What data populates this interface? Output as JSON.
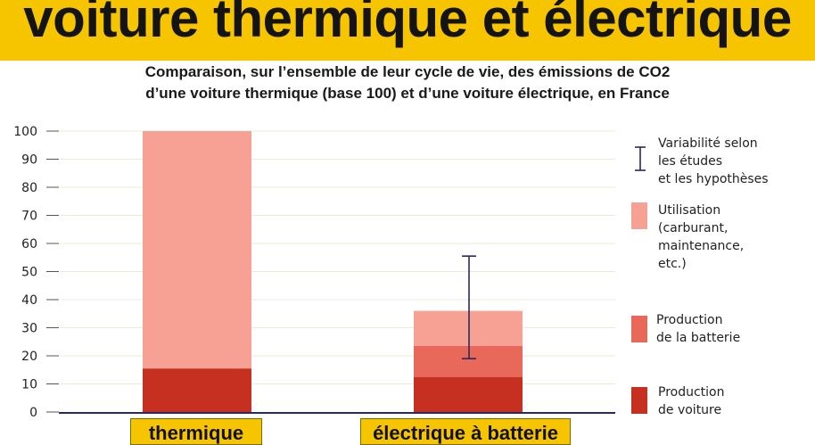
{
  "banner": {
    "title": "voiture thermique et électrique"
  },
  "subtitle": {
    "line1": "Comparaison, sur l’ensemble de leur cycle de vie, des émissions de CO2",
    "line2": "d’une voiture thermique (base 100) et d’une voiture électrique, en France"
  },
  "colors": {
    "banner": "#f7c400",
    "utilisation": "#f7a094",
    "production_batterie": "#e8685a",
    "production_voiture": "#c63020",
    "axis": "#2a2a5a"
  },
  "legend": {
    "variability": "Variabilité selon\nles études\net les hypothèses",
    "utilisation": "Utilisation\n(carburant,\nmaintenance,\netc.)",
    "batterie": "Production\nde la batterie",
    "voiture": "Production\nde voiture"
  },
  "chart_data": {
    "type": "bar",
    "stacked": true,
    "categories": [
      "thermique",
      "électrique à batterie"
    ],
    "series": [
      {
        "name": "Production de voiture",
        "values": [
          15.5,
          12.5
        ]
      },
      {
        "name": "Production de la batterie",
        "values": [
          0,
          11
        ]
      },
      {
        "name": "Utilisation (carburant, maintenance, etc.)",
        "values": [
          84.5,
          12.5
        ]
      }
    ],
    "error_bars": [
      null,
      {
        "low": 19,
        "high": 55.5
      }
    ],
    "yticks": [
      0,
      10,
      20,
      30,
      40,
      50,
      60,
      70,
      80,
      90,
      100
    ],
    "ylim": [
      0,
      100
    ],
    "grid": true,
    "legend_position": "right"
  }
}
